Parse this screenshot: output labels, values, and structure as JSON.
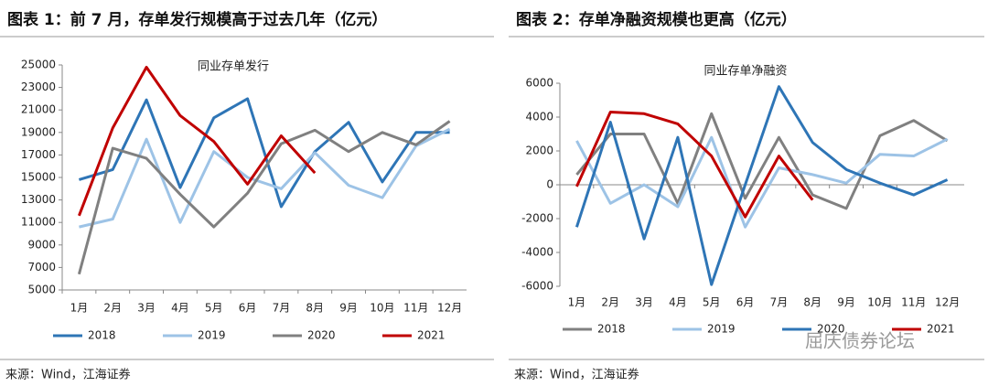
{
  "chart_data": [
    {
      "type": "line",
      "title": "图表 1：前 7 月，存单发行规模高于过去几年（亿元）",
      "subtitle": "同业存单发行",
      "categories": [
        "1月",
        "2月",
        "3月",
        "4月",
        "5月",
        "6月",
        "7月",
        "8月",
        "9月",
        "10月",
        "11月",
        "12月"
      ],
      "series": [
        {
          "name": "2018",
          "color": "#2e75b6",
          "values": [
            14800,
            15700,
            21900,
            14100,
            20300,
            22000,
            12400,
            17300,
            19900,
            14600,
            19000,
            19000
          ]
        },
        {
          "name": "2019",
          "color": "#9dc3e6",
          "values": [
            10600,
            11300,
            18400,
            11000,
            17300,
            15000,
            14000,
            17200,
            14300,
            13200,
            17800,
            19300
          ]
        },
        {
          "name": "2020",
          "color": "#808080",
          "values": [
            6400,
            17600,
            16700,
            13500,
            10600,
            13600,
            18000,
            19200,
            17300,
            19000,
            17900,
            20000
          ]
        },
        {
          "name": "2021",
          "color": "#c00000",
          "values": [
            11600,
            19400,
            24800,
            20500,
            18200,
            14400,
            18700,
            15400,
            null,
            null,
            null,
            null
          ]
        }
      ],
      "ylim": [
        5000,
        25000
      ],
      "yticks": [
        5000,
        7000,
        9000,
        11000,
        13000,
        15000,
        17000,
        19000,
        21000,
        23000,
        25000
      ],
      "legend": "bottom",
      "source": "来源：Wind，江海证券"
    },
    {
      "type": "line",
      "title": "图表 2：存单净融资规模也更高（亿元）",
      "subtitle": "同业存单净融资",
      "categories": [
        "1月",
        "2月",
        "3月",
        "4月",
        "5月",
        "6月",
        "7月",
        "8月",
        "9月",
        "10月",
        "11月",
        "12月"
      ],
      "series": [
        {
          "name": "2018",
          "color": "#808080",
          "values": [
            600,
            3000,
            3000,
            -1100,
            4200,
            -800,
            2800,
            -600,
            -1400,
            2900,
            3800,
            2600
          ]
        },
        {
          "name": "2019",
          "color": "#9dc3e6",
          "values": [
            2600,
            -1100,
            0,
            -1300,
            2800,
            -2500,
            1000,
            600,
            100,
            1800,
            1700,
            2700
          ]
        },
        {
          "name": "2020",
          "color": "#2e75b6",
          "values": [
            -2500,
            3700,
            -3200,
            2800,
            -5900,
            0,
            5800,
            2500,
            900,
            100,
            -600,
            300
          ]
        },
        {
          "name": "2021",
          "color": "#c00000",
          "values": [
            -100,
            4300,
            4200,
            3600,
            1700,
            -1900,
            1700,
            -900,
            null,
            null,
            null,
            null
          ]
        }
      ],
      "ylim": [
        -6000,
        6000
      ],
      "yticks": [
        -6000,
        -4000,
        -2000,
        0,
        2000,
        4000,
        6000
      ],
      "legend": "bottom",
      "source": "来源：Wind，江海证券"
    }
  ],
  "watermark": "屈庆债券论坛"
}
